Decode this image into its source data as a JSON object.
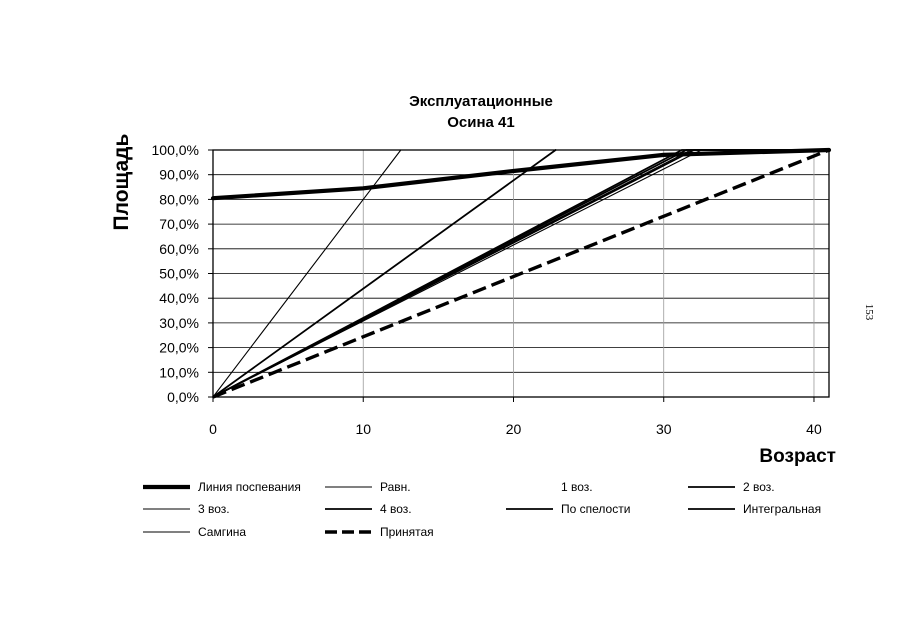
{
  "page_number": "153",
  "chart_data": {
    "type": "line",
    "title": "Эксплуатационные",
    "subtitle": "Осина 41",
    "xlabel": "Возраст",
    "ylabel": "Площадь",
    "xlim": [
      0,
      41
    ],
    "ylim": [
      0,
      100
    ],
    "x_ticks": [
      0,
      10,
      20,
      30,
      40
    ],
    "x_tick_labels": [
      "0",
      "10",
      "20",
      "30",
      "40"
    ],
    "y_ticks": [
      0,
      10,
      20,
      30,
      40,
      50,
      60,
      70,
      80,
      90,
      100
    ],
    "y_tick_labels": [
      "0,0%",
      "10,0%",
      "20,0%",
      "30,0%",
      "40,0%",
      "50,0%",
      "60,0%",
      "70,0%",
      "80,0%",
      "90,0%",
      "100,0%"
    ],
    "grid": "horizontal",
    "legend_position": "bottom",
    "series": [
      {
        "name": "Линия поспевания",
        "style": "thick",
        "x": [
          0,
          10,
          20,
          30,
          41
        ],
        "y": [
          80.5,
          84.5,
          91.5,
          98,
          100
        ]
      },
      {
        "name": "Равн.",
        "style": "thin",
        "x": [
          0,
          12.5
        ],
        "y": [
          0,
          100
        ]
      },
      {
        "name": "1 воз.",
        "style": "none",
        "x": [
          0,
          23
        ],
        "y": [
          0,
          100
        ]
      },
      {
        "name": "2 воз.",
        "style": "medium",
        "x": [
          0,
          22.8
        ],
        "y": [
          0,
          100
        ]
      },
      {
        "name": "3 воз.",
        "style": "thin",
        "x": [
          0,
          32.5,
          41
        ],
        "y": [
          0,
          100,
          100
        ]
      },
      {
        "name": "4 воз.",
        "style": "medium",
        "x": [
          0,
          32,
          41
        ],
        "y": [
          0,
          100,
          100
        ]
      },
      {
        "name": "По спелости",
        "style": "medium",
        "x": [
          0,
          31.5,
          41
        ],
        "y": [
          0,
          100,
          100
        ]
      },
      {
        "name": "Интегральная",
        "style": "medium",
        "x": [
          0,
          31.2,
          41
        ],
        "y": [
          0,
          100,
          100
        ]
      },
      {
        "name": "Самгина",
        "style": "thin",
        "x": [
          0,
          31.8,
          41
        ],
        "y": [
          0,
          100,
          100
        ]
      },
      {
        "name": "Принятая",
        "style": "dashed",
        "x": [
          0,
          41
        ],
        "y": [
          0,
          100
        ]
      }
    ]
  }
}
